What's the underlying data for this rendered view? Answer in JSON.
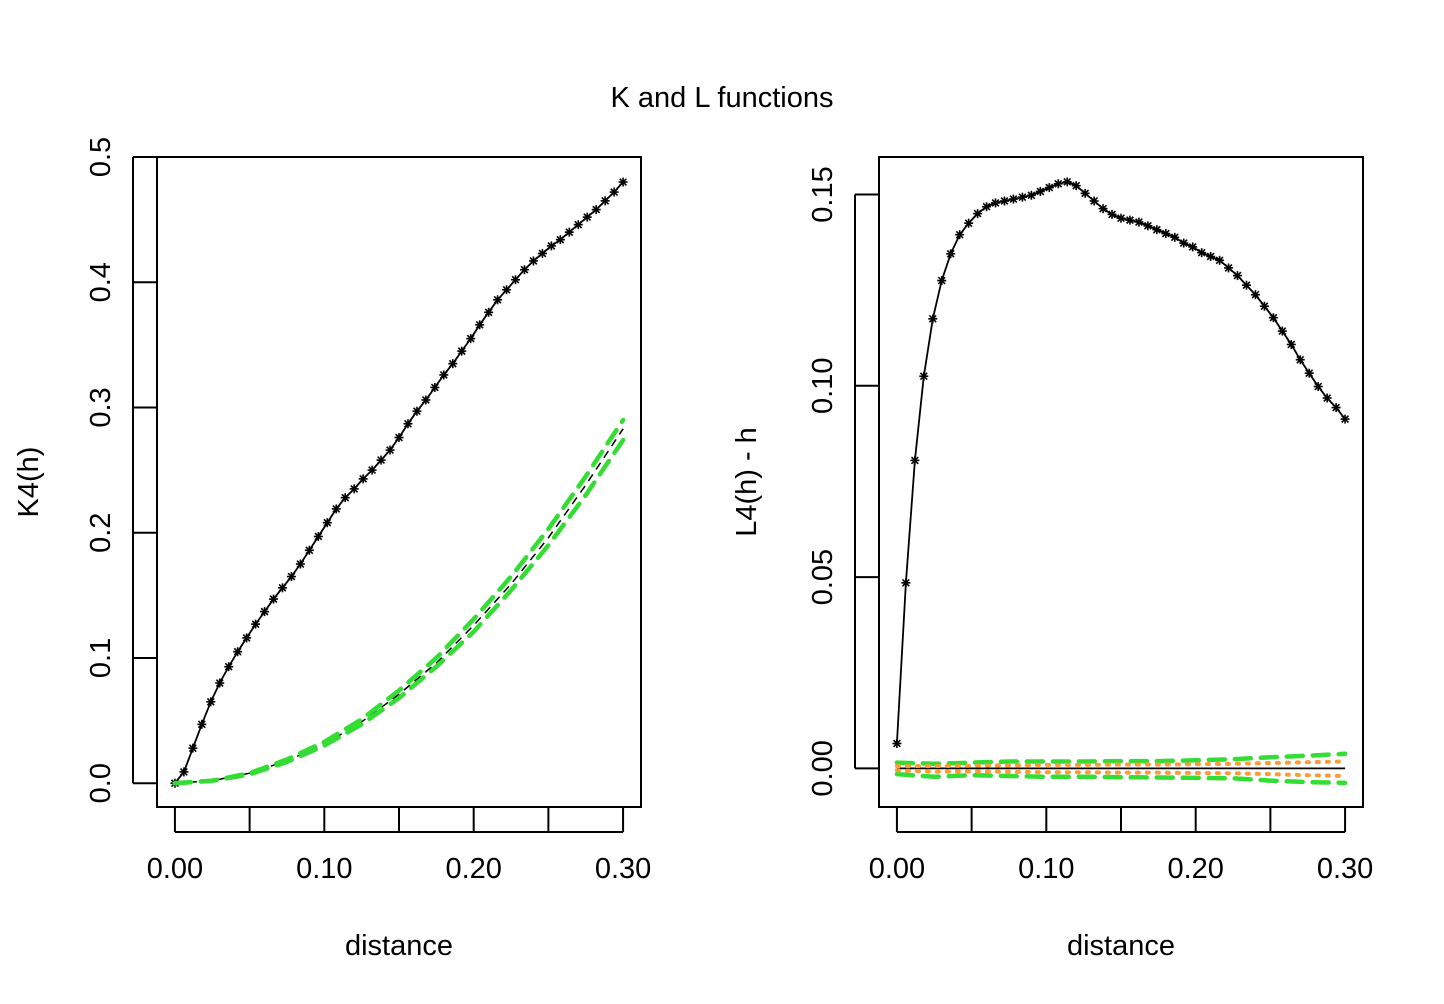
{
  "title": "K and L functions",
  "chart_data": [
    {
      "type": "line",
      "title": "",
      "xlabel": "distance",
      "ylabel": "K4(h)",
      "xlim": [
        -0.012,
        0.312
      ],
      "ylim": [
        -0.019,
        0.5
      ],
      "xticks": [
        "0.00",
        "0.10",
        "0.20",
        "0.30"
      ],
      "xtick_values": [
        0,
        0.05,
        0.1,
        0.15,
        0.2,
        0.25,
        0.3
      ],
      "yticks": [
        "0.0",
        "0.1",
        "0.2",
        "0.3",
        "0.4",
        "0.5"
      ],
      "ytick_values": [
        0,
        0.1,
        0.2,
        0.3,
        0.4,
        0.5
      ],
      "grid": false,
      "legend": "none",
      "series": [
        {
          "role": "observed",
          "style": "solid-with-star-markers",
          "color": "#000000",
          "x": [
            0,
            0.006,
            0.012,
            0.018,
            0.024,
            0.03,
            0.036,
            0.042,
            0.048,
            0.054,
            0.06,
            0.066,
            0.072,
            0.078,
            0.084,
            0.09,
            0.096,
            0.102,
            0.108,
            0.114,
            0.12,
            0.126,
            0.132,
            0.138,
            0.144,
            0.15,
            0.156,
            0.162,
            0.168,
            0.174,
            0.18,
            0.186,
            0.192,
            0.198,
            0.204,
            0.21,
            0.216,
            0.222,
            0.228,
            0.234,
            0.24,
            0.246,
            0.252,
            0.258,
            0.264,
            0.27,
            0.276,
            0.282,
            0.288,
            0.294,
            0.3
          ],
          "y": [
            0.0,
            0.009,
            0.028,
            0.047,
            0.065,
            0.08,
            0.093,
            0.105,
            0.116,
            0.127,
            0.137,
            0.147,
            0.156,
            0.165,
            0.175,
            0.186,
            0.197,
            0.208,
            0.219,
            0.228,
            0.235,
            0.243,
            0.25,
            0.258,
            0.266,
            0.276,
            0.287,
            0.297,
            0.306,
            0.316,
            0.326,
            0.335,
            0.345,
            0.355,
            0.366,
            0.376,
            0.386,
            0.394,
            0.402,
            0.41,
            0.417,
            0.423,
            0.429,
            0.434,
            0.44,
            0.446,
            0.452,
            0.458,
            0.465,
            0.472,
            0.48
          ]
        },
        {
          "role": "theoretical",
          "style": "dashed",
          "color": "#000000",
          "x": [
            0,
            0.025,
            0.05,
            0.075,
            0.1,
            0.125,
            0.15,
            0.175,
            0.2,
            0.225,
            0.25,
            0.275,
            0.3
          ],
          "y": [
            0.0,
            0.002,
            0.008,
            0.018,
            0.031,
            0.049,
            0.071,
            0.096,
            0.126,
            0.159,
            0.196,
            0.238,
            0.283
          ]
        },
        {
          "role": "upper-envelope",
          "style": "dashed",
          "color": "#33dd33",
          "x": [
            0,
            0.025,
            0.05,
            0.075,
            0.1,
            0.125,
            0.15,
            0.175,
            0.2,
            0.225,
            0.25,
            0.275,
            0.3
          ],
          "y": [
            0.0,
            0.002,
            0.008,
            0.019,
            0.033,
            0.051,
            0.074,
            0.1,
            0.131,
            0.165,
            0.203,
            0.245,
            0.29
          ]
        },
        {
          "role": "lower-envelope",
          "style": "dashed",
          "color": "#33dd33",
          "x": [
            0,
            0.025,
            0.05,
            0.075,
            0.1,
            0.125,
            0.15,
            0.175,
            0.2,
            0.225,
            0.25,
            0.275,
            0.3
          ],
          "y": [
            0.0,
            0.002,
            0.007,
            0.017,
            0.03,
            0.047,
            0.068,
            0.093,
            0.121,
            0.154,
            0.19,
            0.23,
            0.274
          ]
        }
      ]
    },
    {
      "type": "line",
      "title": "",
      "xlabel": "distance",
      "ylabel": "L4(h) - h",
      "xlim": [
        -0.012,
        0.312
      ],
      "ylim": [
        -0.0101,
        0.1598
      ],
      "xticks": [
        "0.00",
        "0.10",
        "0.20",
        "0.30"
      ],
      "xtick_values": [
        0,
        0.05,
        0.1,
        0.15,
        0.2,
        0.25,
        0.3
      ],
      "yticks": [
        "0.00",
        "0.05",
        "0.10",
        "0.15"
      ],
      "ytick_values": [
        0,
        0.05,
        0.1,
        0.15
      ],
      "grid": false,
      "legend": "none",
      "series": [
        {
          "role": "observed",
          "style": "solid-with-star-markers",
          "color": "#000000",
          "x": [
            0,
            0.006,
            0.012,
            0.018,
            0.024,
            0.03,
            0.036,
            0.042,
            0.048,
            0.054,
            0.06,
            0.066,
            0.072,
            0.078,
            0.084,
            0.09,
            0.096,
            0.102,
            0.108,
            0.114,
            0.12,
            0.126,
            0.132,
            0.138,
            0.144,
            0.15,
            0.156,
            0.162,
            0.168,
            0.174,
            0.18,
            0.186,
            0.192,
            0.198,
            0.204,
            0.21,
            0.216,
            0.222,
            0.228,
            0.234,
            0.24,
            0.246,
            0.252,
            0.258,
            0.264,
            0.27,
            0.276,
            0.282,
            0.288,
            0.294,
            0.3
          ],
          "y": [
            0.0065,
            0.0485,
            0.0805,
            0.1025,
            0.1175,
            0.1275,
            0.1345,
            0.1395,
            0.1425,
            0.145,
            0.1468,
            0.1478,
            0.1483,
            0.1488,
            0.1493,
            0.1498,
            0.1508,
            0.1518,
            0.1528,
            0.1533,
            0.1523,
            0.1503,
            0.1483,
            0.1463,
            0.1448,
            0.1438,
            0.1433,
            0.1428,
            0.1418,
            0.1408,
            0.1398,
            0.1388,
            0.1373,
            0.1363,
            0.1348,
            0.1338,
            0.1328,
            0.1308,
            0.1288,
            0.1263,
            0.1238,
            0.1208,
            0.1178,
            0.1143,
            0.1108,
            0.1068,
            0.1033,
            0.0998,
            0.0968,
            0.0943,
            0.0913
          ]
        },
        {
          "role": "theoretical",
          "style": "solid",
          "color": "#000000",
          "x": [
            0,
            0.3
          ],
          "y": [
            0,
            0
          ]
        },
        {
          "role": "upper-envelope",
          "style": "dashed",
          "color": "#33dd33",
          "x": [
            0,
            0.025,
            0.05,
            0.075,
            0.1,
            0.125,
            0.15,
            0.175,
            0.2,
            0.225,
            0.25,
            0.275,
            0.3
          ],
          "y": [
            0.0015,
            0.0012,
            0.0015,
            0.0018,
            0.0018,
            0.0018,
            0.0019,
            0.0019,
            0.0021,
            0.0024,
            0.0029,
            0.0033,
            0.0038
          ]
        },
        {
          "role": "lower-envelope",
          "style": "dashed",
          "color": "#33dd33",
          "x": [
            0,
            0.025,
            0.05,
            0.075,
            0.1,
            0.125,
            0.15,
            0.175,
            0.2,
            0.225,
            0.25,
            0.275,
            0.3
          ],
          "y": [
            -0.0015,
            -0.0022,
            -0.0018,
            -0.002,
            -0.0022,
            -0.0022,
            -0.0023,
            -0.0024,
            -0.0025,
            -0.0026,
            -0.0032,
            -0.0036,
            -0.0038
          ]
        },
        {
          "role": "upper-envelope-inner",
          "style": "dotted",
          "color": "#ff9933",
          "x": [
            0,
            0.025,
            0.05,
            0.075,
            0.1,
            0.125,
            0.15,
            0.175,
            0.2,
            0.225,
            0.25,
            0.275,
            0.3
          ],
          "y": [
            0.0006,
            0.0006,
            0.0007,
            0.0008,
            0.0009,
            0.0009,
            0.001,
            0.001,
            0.0011,
            0.0012,
            0.0014,
            0.0016,
            0.0018
          ]
        },
        {
          "role": "lower-envelope-inner",
          "style": "dotted",
          "color": "#ff9933",
          "x": [
            0,
            0.025,
            0.05,
            0.075,
            0.1,
            0.125,
            0.15,
            0.175,
            0.2,
            0.225,
            0.25,
            0.275,
            0.3
          ],
          "y": [
            -0.0005,
            -0.0009,
            -0.0008,
            -0.0009,
            -0.001,
            -0.001,
            -0.0011,
            -0.0011,
            -0.0012,
            -0.0013,
            -0.0015,
            -0.0018,
            -0.002
          ]
        }
      ]
    }
  ]
}
